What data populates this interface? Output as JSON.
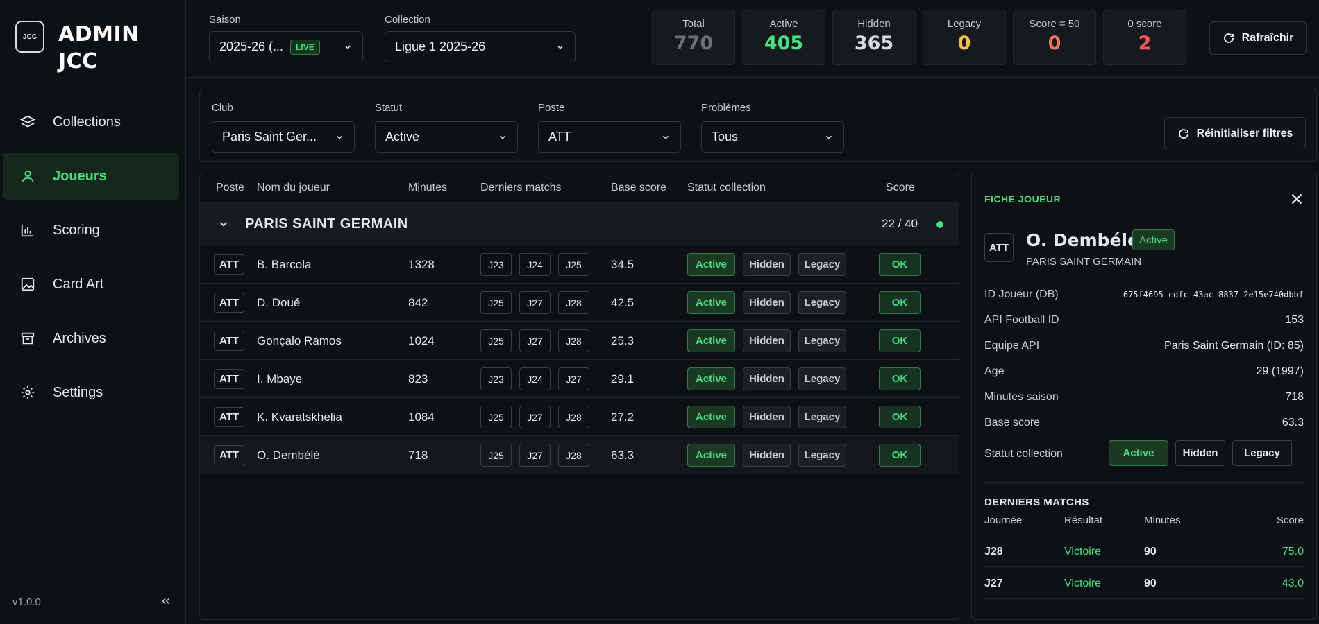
{
  "brand": {
    "logo": "JCC",
    "title": "ADMIN JCC"
  },
  "nav": [
    {
      "label": "Collections",
      "icon": "layers-icon"
    },
    {
      "label": "Joueurs",
      "icon": "user-icon",
      "active": true
    },
    {
      "label": "Scoring",
      "icon": "bar-chart-icon"
    },
    {
      "label": "Card Art",
      "icon": "image-icon"
    },
    {
      "label": "Archives",
      "icon": "archive-icon"
    },
    {
      "label": "Settings",
      "icon": "gear-icon"
    }
  ],
  "version": "v1.0.0",
  "top": {
    "season_label": "Saison",
    "season_value": "2025-26 (...",
    "season_badge": "LIVE",
    "collection_label": "Collection",
    "collection_value": "Ligue 1 2025-26",
    "refresh": "Rafraîchir"
  },
  "stats": [
    {
      "label": "Total",
      "value": "770",
      "color": "#6b7078"
    },
    {
      "label": "Active",
      "value": "405",
      "color": "#4ade80"
    },
    {
      "label": "Hidden",
      "value": "365",
      "color": "#d8dbe0"
    },
    {
      "label": "Legacy",
      "value": "0",
      "color": "#f5c04e"
    },
    {
      "label": "Score = 50",
      "value": "0",
      "color": "#f2765f"
    },
    {
      "label": "0 score",
      "value": "2",
      "color": "#f05b5b"
    }
  ],
  "filters": {
    "club_label": "Club",
    "club_value": "Paris Saint Ger...",
    "statut_label": "Statut",
    "statut_value": "Active",
    "poste_label": "Poste",
    "poste_value": "ATT",
    "problemes_label": "Problèmes",
    "problemes_value": "Tous",
    "reset": "Réinitialiser filtres"
  },
  "table": {
    "headers": [
      "Poste",
      "Nom du joueur",
      "Minutes",
      "Derniers matchs",
      "Base score",
      "Statut collection",
      "Score"
    ],
    "group": {
      "name": "PARIS SAINT GERMAIN",
      "count": "22 / 40"
    },
    "status_labels": [
      "Active",
      "Hidden",
      "Legacy"
    ],
    "rows": [
      {
        "pos": "ATT",
        "name": "B. Barcola",
        "minutes": "1328",
        "matches": [
          "J23",
          "J24",
          "J25"
        ],
        "base": "34.5",
        "score": "OK"
      },
      {
        "pos": "ATT",
        "name": "D. Doué",
        "minutes": "842",
        "matches": [
          "J25",
          "J27",
          "J28"
        ],
        "base": "42.5",
        "score": "OK"
      },
      {
        "pos": "ATT",
        "name": "Gonçalo Ramos",
        "minutes": "1024",
        "matches": [
          "J25",
          "J27",
          "J28"
        ],
        "base": "25.3",
        "score": "OK"
      },
      {
        "pos": "ATT",
        "name": "I. Mbaye",
        "minutes": "823",
        "matches": [
          "J23",
          "J24",
          "J27"
        ],
        "base": "29.1",
        "score": "OK"
      },
      {
        "pos": "ATT",
        "name": "K. Kvaratskhelia",
        "minutes": "1084",
        "matches": [
          "J25",
          "J27",
          "J28"
        ],
        "base": "27.2",
        "score": "OK"
      },
      {
        "pos": "ATT",
        "name": "O. Dembélé",
        "minutes": "718",
        "matches": [
          "J25",
          "J27",
          "J28"
        ],
        "base": "63.3",
        "score": "OK",
        "selected": true
      }
    ]
  },
  "panel": {
    "title": "FICHE JOUEUR",
    "pos": "ATT",
    "name": "O. Dembélé",
    "badge": "Active",
    "club": "PARIS SAINT GERMAIN",
    "fields": [
      {
        "k": "ID Joueur (DB)",
        "v": "675f4695-cdfc-43ac-8837-2e15e740dbbf",
        "mono": true
      },
      {
        "k": "API Football ID",
        "v": "153"
      },
      {
        "k": "Equipe API",
        "v": "Paris Saint Germain (ID: 85)"
      },
      {
        "k": "Age",
        "v": "29 (1997)"
      },
      {
        "k": "Minutes saison",
        "v": "718"
      },
      {
        "k": "Base score",
        "v": "63.3"
      }
    ],
    "statut_label": "Statut collection",
    "statut_buttons": [
      "Active",
      "Hidden",
      "Legacy"
    ],
    "matches_title": "DERNIERS MATCHS",
    "matches_headers": [
      "Journée",
      "Résultat",
      "Minutes",
      "Score"
    ],
    "matches": [
      {
        "j": "J28",
        "r": "Victoire",
        "m": "90",
        "s": "75.0"
      },
      {
        "j": "J27",
        "r": "Victoire",
        "m": "90",
        "s": "43.0"
      }
    ]
  }
}
